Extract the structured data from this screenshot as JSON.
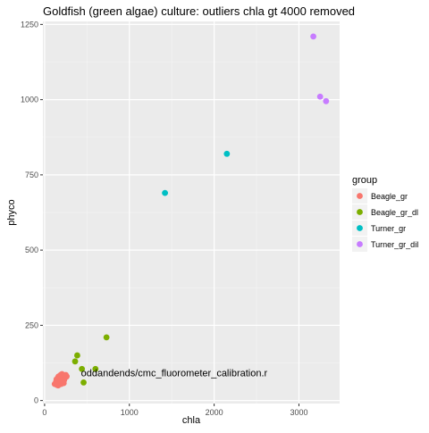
{
  "chart_data": {
    "type": "scatter",
    "title": "Goldfish (green algae) culture: outliers chla gt 4000 removed",
    "xlabel": "chla",
    "ylabel": "phyco",
    "xlim": [
      -20,
      3480
    ],
    "ylim": [
      -10,
      1260
    ],
    "x_ticks": [
      0,
      1000,
      2000,
      3000
    ],
    "y_ticks": [
      0,
      250,
      500,
      750,
      1000,
      1250
    ],
    "grid": true,
    "background": "#EBEBEB",
    "legend": {
      "title": "group",
      "placement": "right"
    },
    "series": [
      {
        "name": "Beagle_gr",
        "color": "#F8766D",
        "points": [
          [
            120,
            55
          ],
          [
            135,
            62
          ],
          [
            140,
            70
          ],
          [
            150,
            58
          ],
          [
            155,
            75
          ],
          [
            160,
            50
          ],
          [
            165,
            80
          ],
          [
            170,
            65
          ],
          [
            175,
            60
          ],
          [
            180,
            72
          ],
          [
            185,
            68
          ],
          [
            190,
            85
          ],
          [
            195,
            55
          ],
          [
            200,
            78
          ],
          [
            210,
            62
          ],
          [
            215,
            70
          ],
          [
            220,
            82
          ],
          [
            230,
            68
          ],
          [
            240,
            75
          ],
          [
            250,
            85
          ],
          [
            145,
            52
          ],
          [
            205,
            88
          ],
          [
            225,
            58
          ],
          [
            260,
            80
          ]
        ]
      },
      {
        "name": "Beagle_gr_dl",
        "color": "#7CAE00",
        "points": [
          [
            360,
            130
          ],
          [
            385,
            150
          ],
          [
            440,
            105
          ],
          [
            460,
            60
          ],
          [
            600,
            105
          ],
          [
            730,
            210
          ]
        ]
      },
      {
        "name": "Turner_gr",
        "color": "#00BFC4",
        "points": [
          [
            1420,
            690
          ],
          [
            2150,
            820
          ]
        ]
      },
      {
        "name": "Turner_gr_dil",
        "color": "#C77CFF",
        "points": [
          [
            3170,
            1210
          ],
          [
            3250,
            1010
          ],
          [
            3320,
            995
          ]
        ]
      }
    ],
    "annotations": [
      {
        "text": "oddandends/cmc_fluorometer_calibration.r",
        "x": 430,
        "y": 80
      }
    ]
  }
}
